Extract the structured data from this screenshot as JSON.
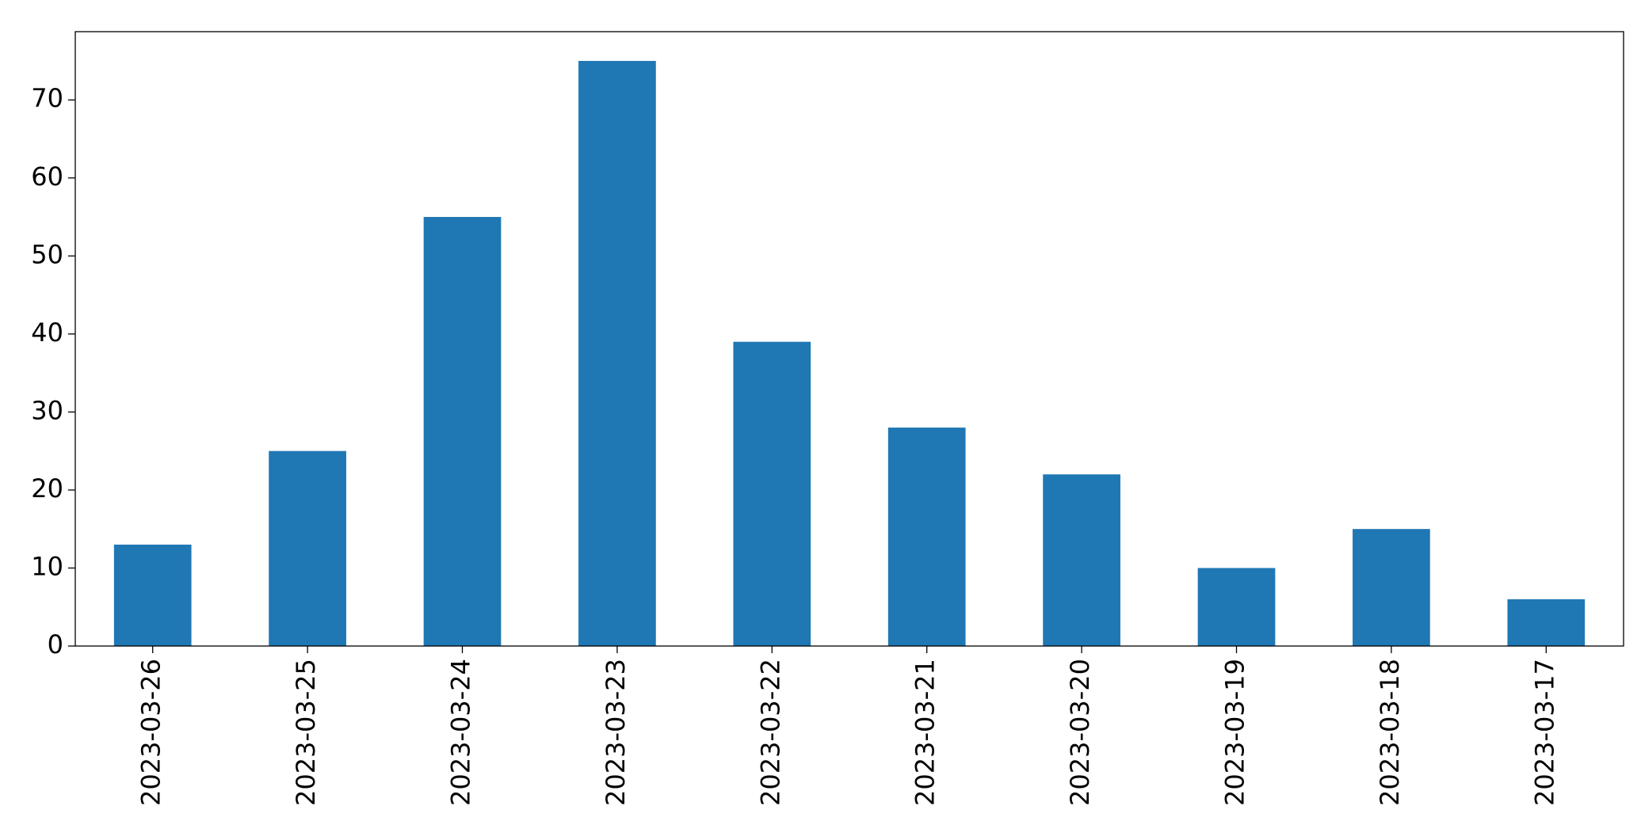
{
  "chart_data": {
    "type": "bar",
    "categories": [
      "2023-03-26",
      "2023-03-25",
      "2023-03-24",
      "2023-03-23",
      "2023-03-22",
      "2023-03-21",
      "2023-03-20",
      "2023-03-19",
      "2023-03-18",
      "2023-03-17"
    ],
    "values": [
      13,
      25,
      55,
      75,
      39,
      28,
      22,
      10,
      15,
      6
    ],
    "color": "#1f77b4",
    "ylim": [
      0,
      78.75
    ],
    "yticks": [
      0,
      10,
      20,
      30,
      40,
      50,
      60,
      70
    ],
    "grid": false
  }
}
